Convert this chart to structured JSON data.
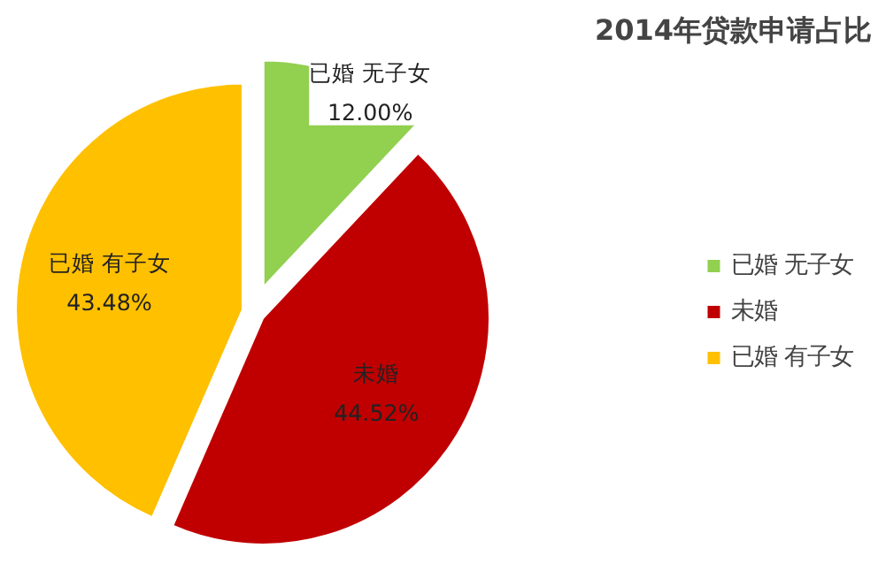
{
  "chart_data": {
    "type": "pie",
    "title": "2014年贷款申请占比",
    "categories": [
      "已婚 无子女",
      "未婚",
      "已婚 有子女"
    ],
    "values": [
      12.0,
      44.52,
      43.48
    ],
    "value_labels": [
      "12.00%",
      "44.52%",
      "43.48%"
    ],
    "colors": [
      "#92d050",
      "#c00000",
      "#ffc000"
    ],
    "legend": "right"
  }
}
